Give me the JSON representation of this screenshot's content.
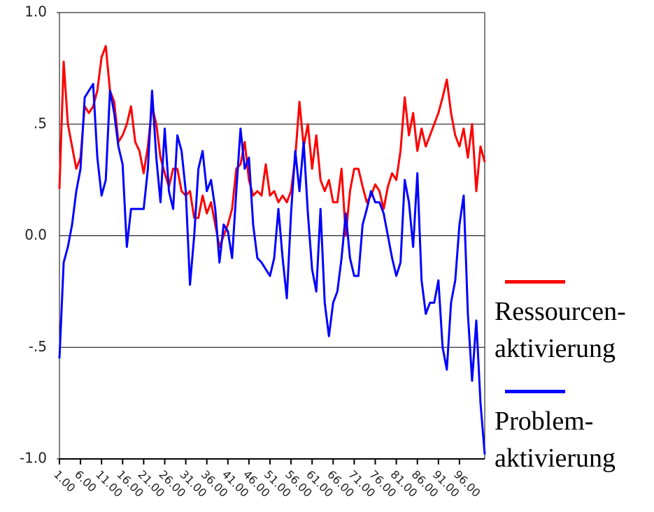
{
  "chart_data": {
    "type": "line",
    "x": [
      1,
      2,
      3,
      4,
      5,
      6,
      7,
      8,
      9,
      10,
      11,
      12,
      13,
      14,
      15,
      16,
      17,
      18,
      19,
      20,
      21,
      22,
      23,
      24,
      25,
      26,
      27,
      28,
      29,
      30,
      31,
      32,
      33,
      34,
      35,
      36,
      37,
      38,
      39,
      40,
      41,
      42,
      43,
      44,
      45,
      46,
      47,
      48,
      49,
      50,
      51,
      52,
      53,
      54,
      55,
      56,
      57,
      58,
      59,
      60,
      61,
      62,
      63,
      64,
      65,
      66,
      67,
      68,
      69,
      70,
      71,
      72,
      73,
      74,
      75,
      76,
      77,
      78,
      79,
      80,
      81,
      82,
      83,
      84,
      85,
      86,
      87,
      88,
      89,
      90,
      91,
      92,
      93,
      94,
      95,
      96,
      97,
      98,
      99,
      100,
      101,
      102
    ],
    "series": [
      {
        "name": "Ressourcen-aktivierung",
        "color": "#ff0000",
        "values": [
          0.21,
          0.78,
          0.5,
          0.4,
          0.3,
          0.35,
          0.58,
          0.55,
          0.58,
          0.65,
          0.8,
          0.85,
          0.65,
          0.6,
          0.42,
          0.45,
          0.5,
          0.58,
          0.42,
          0.38,
          0.28,
          0.4,
          0.58,
          0.5,
          0.35,
          0.28,
          0.22,
          0.3,
          0.3,
          0.2,
          0.18,
          0.2,
          0.08,
          0.08,
          0.18,
          0.1,
          0.15,
          0.05,
          -0.05,
          0.0,
          0.05,
          0.12,
          0.3,
          0.32,
          0.42,
          0.25,
          0.18,
          0.2,
          0.18,
          0.32,
          0.18,
          0.2,
          0.15,
          0.18,
          0.15,
          0.2,
          0.35,
          0.6,
          0.4,
          0.5,
          0.3,
          0.45,
          0.25,
          0.2,
          0.25,
          0.15,
          0.15,
          0.3,
          0.0,
          0.2,
          0.3,
          0.3,
          0.22,
          0.15,
          0.18,
          0.23,
          0.2,
          0.12,
          0.22,
          0.28,
          0.25,
          0.38,
          0.62,
          0.45,
          0.55,
          0.38,
          0.48,
          0.4,
          0.45,
          0.5,
          0.55,
          0.62,
          0.7,
          0.55,
          0.45,
          0.4,
          0.48,
          0.35,
          0.5,
          0.2,
          0.4,
          0.33
        ]
      },
      {
        "name": "Problem-aktivierung",
        "color": "#0000ff",
        "values": [
          -0.55,
          -0.12,
          -0.05,
          0.05,
          0.2,
          0.3,
          0.62,
          0.65,
          0.68,
          0.35,
          0.18,
          0.25,
          0.65,
          0.55,
          0.4,
          0.32,
          -0.05,
          0.12,
          0.12,
          0.12,
          0.12,
          0.3,
          0.65,
          0.35,
          0.15,
          0.48,
          0.2,
          0.12,
          0.45,
          0.38,
          0.2,
          -0.22,
          0.0,
          0.3,
          0.38,
          0.2,
          0.25,
          0.12,
          -0.12,
          0.05,
          0.02,
          -0.1,
          0.2,
          0.48,
          0.3,
          0.35,
          0.05,
          -0.1,
          -0.12,
          -0.15,
          -0.18,
          -0.1,
          0.12,
          -0.1,
          -0.28,
          0.1,
          0.38,
          0.2,
          0.42,
          0.1,
          -0.15,
          -0.25,
          0.12,
          -0.3,
          -0.45,
          -0.3,
          -0.25,
          -0.1,
          0.1,
          -0.1,
          -0.18,
          -0.18,
          0.05,
          0.12,
          0.2,
          0.15,
          0.15,
          0.1,
          0.0,
          -0.1,
          -0.18,
          -0.12,
          0.25,
          0.15,
          -0.05,
          0.28,
          -0.2,
          -0.35,
          -0.3,
          -0.3,
          -0.2,
          -0.5,
          -0.6,
          -0.3,
          -0.2,
          0.05,
          0.18,
          -0.35,
          -0.65,
          -0.38,
          -0.75,
          -0.98
        ]
      }
    ],
    "xlim": [
      1,
      102
    ],
    "xticks": [
      {
        "value": 1,
        "label": "1.00"
      },
      {
        "value": 6,
        "label": "6.00"
      },
      {
        "value": 11,
        "label": "11.00"
      },
      {
        "value": 16,
        "label": "16.00"
      },
      {
        "value": 21,
        "label": "21.00"
      },
      {
        "value": 26,
        "label": "26.00"
      },
      {
        "value": 31,
        "label": "31.00"
      },
      {
        "value": 36,
        "label": "36.00"
      },
      {
        "value": 41,
        "label": "41.00"
      },
      {
        "value": 46,
        "label": "46.00"
      },
      {
        "value": 51,
        "label": "51.00"
      },
      {
        "value": 56,
        "label": "56.00"
      },
      {
        "value": 61,
        "label": "61.00"
      },
      {
        "value": 66,
        "label": "66.00"
      },
      {
        "value": 71,
        "label": "71.00"
      },
      {
        "value": 76,
        "label": "76.00"
      },
      {
        "value": 81,
        "label": "81.00"
      },
      {
        "value": 86,
        "label": "86.00"
      },
      {
        "value": 91,
        "label": "91.00"
      },
      {
        "value": 96,
        "label": "96.00"
      }
    ],
    "ylim": [
      -1,
      1
    ],
    "yticks": [
      {
        "value": -1,
        "label": "-1.0"
      },
      {
        "value": -0.5,
        "label": "-.5"
      },
      {
        "value": 0,
        "label": "0.0"
      },
      {
        "value": 0.5,
        "label": ".5"
      },
      {
        "value": 1,
        "label": "1.0"
      }
    ],
    "grid": true
  }
}
